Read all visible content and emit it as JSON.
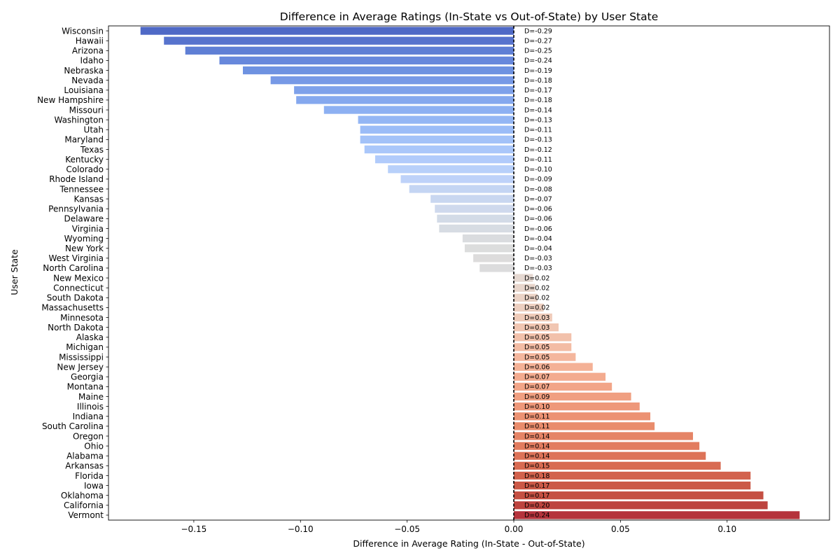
{
  "chart_data": {
    "type": "bar",
    "orientation": "horizontal",
    "title": "Difference in Average Ratings (In-State vs Out-of-State) by User State",
    "xlabel": "Difference in Average Rating (In-State - Out-of-State)",
    "ylabel": "User State",
    "xlim": [
      -0.19,
      0.148
    ],
    "xticks": [
      -0.15,
      -0.1,
      -0.05,
      0.0,
      0.05,
      0.1
    ],
    "xtick_labels": [
      "−0.15",
      "−0.10",
      "−0.05",
      "0.00",
      "0.05",
      "0.10"
    ],
    "reference_line": 0,
    "grid": false,
    "colormap": "coolwarm",
    "categories": [
      "Wisconsin",
      "Hawaii",
      "Arizona",
      "Idaho",
      "Nebraska",
      "Nevada",
      "Louisiana",
      "New Hampshire",
      "Missouri",
      "Washington",
      "Utah",
      "Maryland",
      "Texas",
      "Kentucky",
      "Colorado",
      "Rhode Island",
      "Tennessee",
      "Kansas",
      "Pennsylvania",
      "Delaware",
      "Virginia",
      "Wyoming",
      "New York",
      "West Virginia",
      "North Carolina",
      "New Mexico",
      "Connecticut",
      "South Dakota",
      "Massachusetts",
      "Minnesota",
      "North Dakota",
      "Alaska",
      "Michigan",
      "Mississippi",
      "New Jersey",
      "Georgia",
      "Montana",
      "Maine",
      "Illinois",
      "Indiana",
      "South Carolina",
      "Oregon",
      "Ohio",
      "Alabama",
      "Arkansas",
      "Florida",
      "Iowa",
      "Oklahoma",
      "California",
      "Vermont"
    ],
    "values": [
      -0.175,
      -0.164,
      -0.154,
      -0.138,
      -0.127,
      -0.114,
      -0.103,
      -0.102,
      -0.089,
      -0.073,
      -0.072,
      -0.072,
      -0.07,
      -0.065,
      -0.059,
      -0.053,
      -0.049,
      -0.039,
      -0.037,
      -0.036,
      -0.035,
      -0.024,
      -0.023,
      -0.019,
      -0.016,
      0.009,
      0.01,
      0.011,
      0.014,
      0.018,
      0.021,
      0.027,
      0.027,
      0.029,
      0.037,
      0.043,
      0.046,
      0.055,
      0.059,
      0.064,
      0.066,
      0.084,
      0.087,
      0.09,
      0.097,
      0.111,
      0.111,
      0.117,
      0.119,
      0.134
    ],
    "annotations": [
      "D=-0.29",
      "D=-0.27",
      "D=-0.25",
      "D=-0.24",
      "D=-0.19",
      "D=-0.18",
      "D=-0.17",
      "D=-0.18",
      "D=-0.14",
      "D=-0.13",
      "D=-0.11",
      "D=-0.13",
      "D=-0.12",
      "D=-0.11",
      "D=-0.10",
      "D=-0.09",
      "D=-0.08",
      "D=-0.07",
      "D=-0.06",
      "D=-0.06",
      "D=-0.06",
      "D=-0.04",
      "D=-0.04",
      "D=-0.03",
      "D=-0.03",
      "D=0.02",
      "D=0.02",
      "D=0.02",
      "D=0.02",
      "D=0.03",
      "D=0.03",
      "D=0.05",
      "D=0.05",
      "D=0.05",
      "D=0.06",
      "D=0.07",
      "D=0.07",
      "D=0.09",
      "D=0.10",
      "D=0.11",
      "D=0.11",
      "D=0.14",
      "D=0.14",
      "D=0.14",
      "D=0.15",
      "D=0.18",
      "D=0.17",
      "D=0.17",
      "D=0.20",
      "D=0.24"
    ],
    "colors": [
      "#4f69c6",
      "#5773cd",
      "#5f7fd5",
      "#6788dc",
      "#6e92e1",
      "#7799e6",
      "#7ea1ea",
      "#85a8ee",
      "#8db0f2",
      "#94b6f4",
      "#9bbcf7",
      "#a3c2f8",
      "#aac7fa",
      "#b1cbfb",
      "#b8d0fa",
      "#bed2f9",
      "#c4d5f3",
      "#c9d7f0",
      "#cfd9ed",
      "#d3dbe7",
      "#d7dce3",
      "#dadcdf",
      "#dcdddd",
      "#dddcdc",
      "#dcdcdd",
      "#e5d8d1",
      "#e8d6cc",
      "#ebd3c6",
      "#edcfc0",
      "#efcbb9",
      "#f1c6b2",
      "#f2c1ab",
      "#f3bca4",
      "#f4b69d",
      "#f4b196",
      "#f3ab8f",
      "#f2a588",
      "#f09f81",
      "#ee987a",
      "#ec9273",
      "#e98c6c",
      "#e58466",
      "#e27c5f",
      "#dd7358",
      "#d86b52",
      "#d2624d",
      "#cb5947",
      "#c55043",
      "#bd443f",
      "#b5333c"
    ]
  }
}
